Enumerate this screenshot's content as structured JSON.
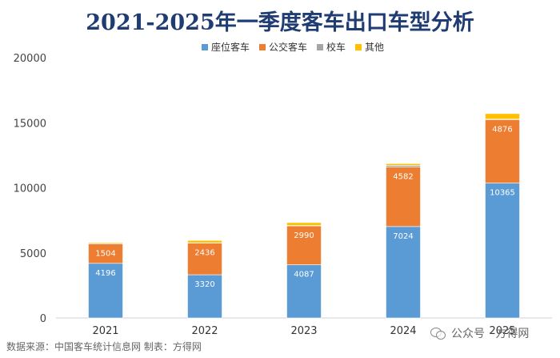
{
  "chart_data": {
    "type": "bar",
    "stacked": true,
    "title": "2021-2025年一季度客车出口车型分析",
    "categories": [
      "2021",
      "2022",
      "2023",
      "2024",
      "2025"
    ],
    "series": [
      {
        "name": "座位客车",
        "color": "#5b9bd5",
        "values": [
          4196,
          3320,
          4087,
          7024,
          10365
        ],
        "labels": [
          "4196",
          "3320",
          "4087",
          "7024",
          "10365"
        ]
      },
      {
        "name": "公交客车",
        "color": "#ed7d31",
        "values": [
          1504,
          2436,
          2990,
          4582,
          4876
        ],
        "labels": [
          "1504",
          "2436",
          "2990",
          "4582",
          "4876"
        ]
      },
      {
        "name": "校车",
        "color": "#a5a5a5",
        "values": [
          20,
          20,
          30,
          120,
          40
        ]
      },
      {
        "name": "其他",
        "color": "#ffc000",
        "values": [
          70,
          180,
          220,
          130,
          420
        ]
      }
    ],
    "ylim": [
      0,
      20000
    ],
    "yticks": [
      "0",
      "5000",
      "10000",
      "15000",
      "20000"
    ],
    "grid": false,
    "legend": "top-center"
  },
  "footer": {
    "source": "数据来源：中国客车统计信息网 制表：方得网",
    "watermark": "公众号 · 方得网",
    "watermark_icon": "wechat-icon"
  }
}
